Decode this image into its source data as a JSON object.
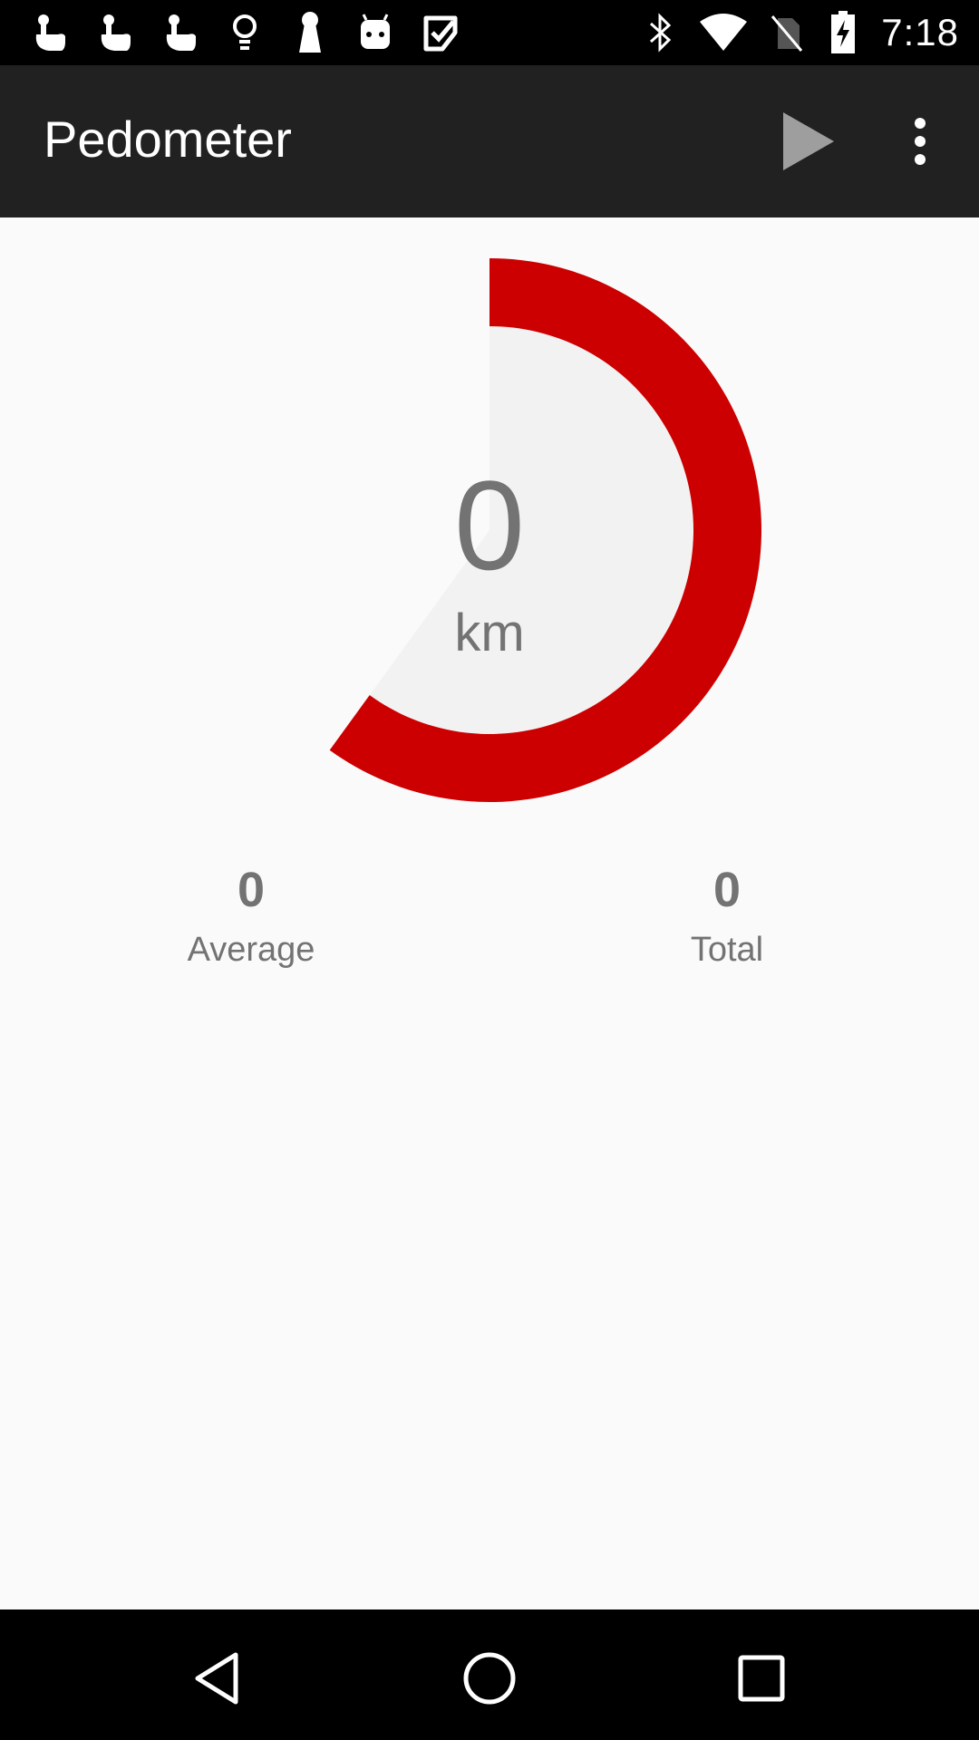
{
  "status_bar": {
    "time": "7:18",
    "notification_icons": [
      "touch-icon",
      "touch-icon",
      "touch-icon",
      "lightbulb-icon",
      "keyhole-icon",
      "android-icon",
      "checkbox-icon"
    ],
    "system_icons": [
      "bluetooth-icon",
      "wifi-icon",
      "no-sim-icon",
      "battery-charging-icon"
    ]
  },
  "app_bar": {
    "title": "Pedometer",
    "actions": [
      "play-icon",
      "more-options-icon"
    ]
  },
  "gauge": {
    "value": "0",
    "unit": "km",
    "progress_fraction": 0.6,
    "colors": {
      "progress": "#cc0000",
      "remainder": "#f2f2f2"
    }
  },
  "stats": {
    "average": {
      "value": "0",
      "label": "Average"
    },
    "total": {
      "value": "0",
      "label": "Total"
    }
  },
  "nav_bar": {
    "buttons": [
      "back-icon",
      "home-icon",
      "recents-icon"
    ]
  }
}
